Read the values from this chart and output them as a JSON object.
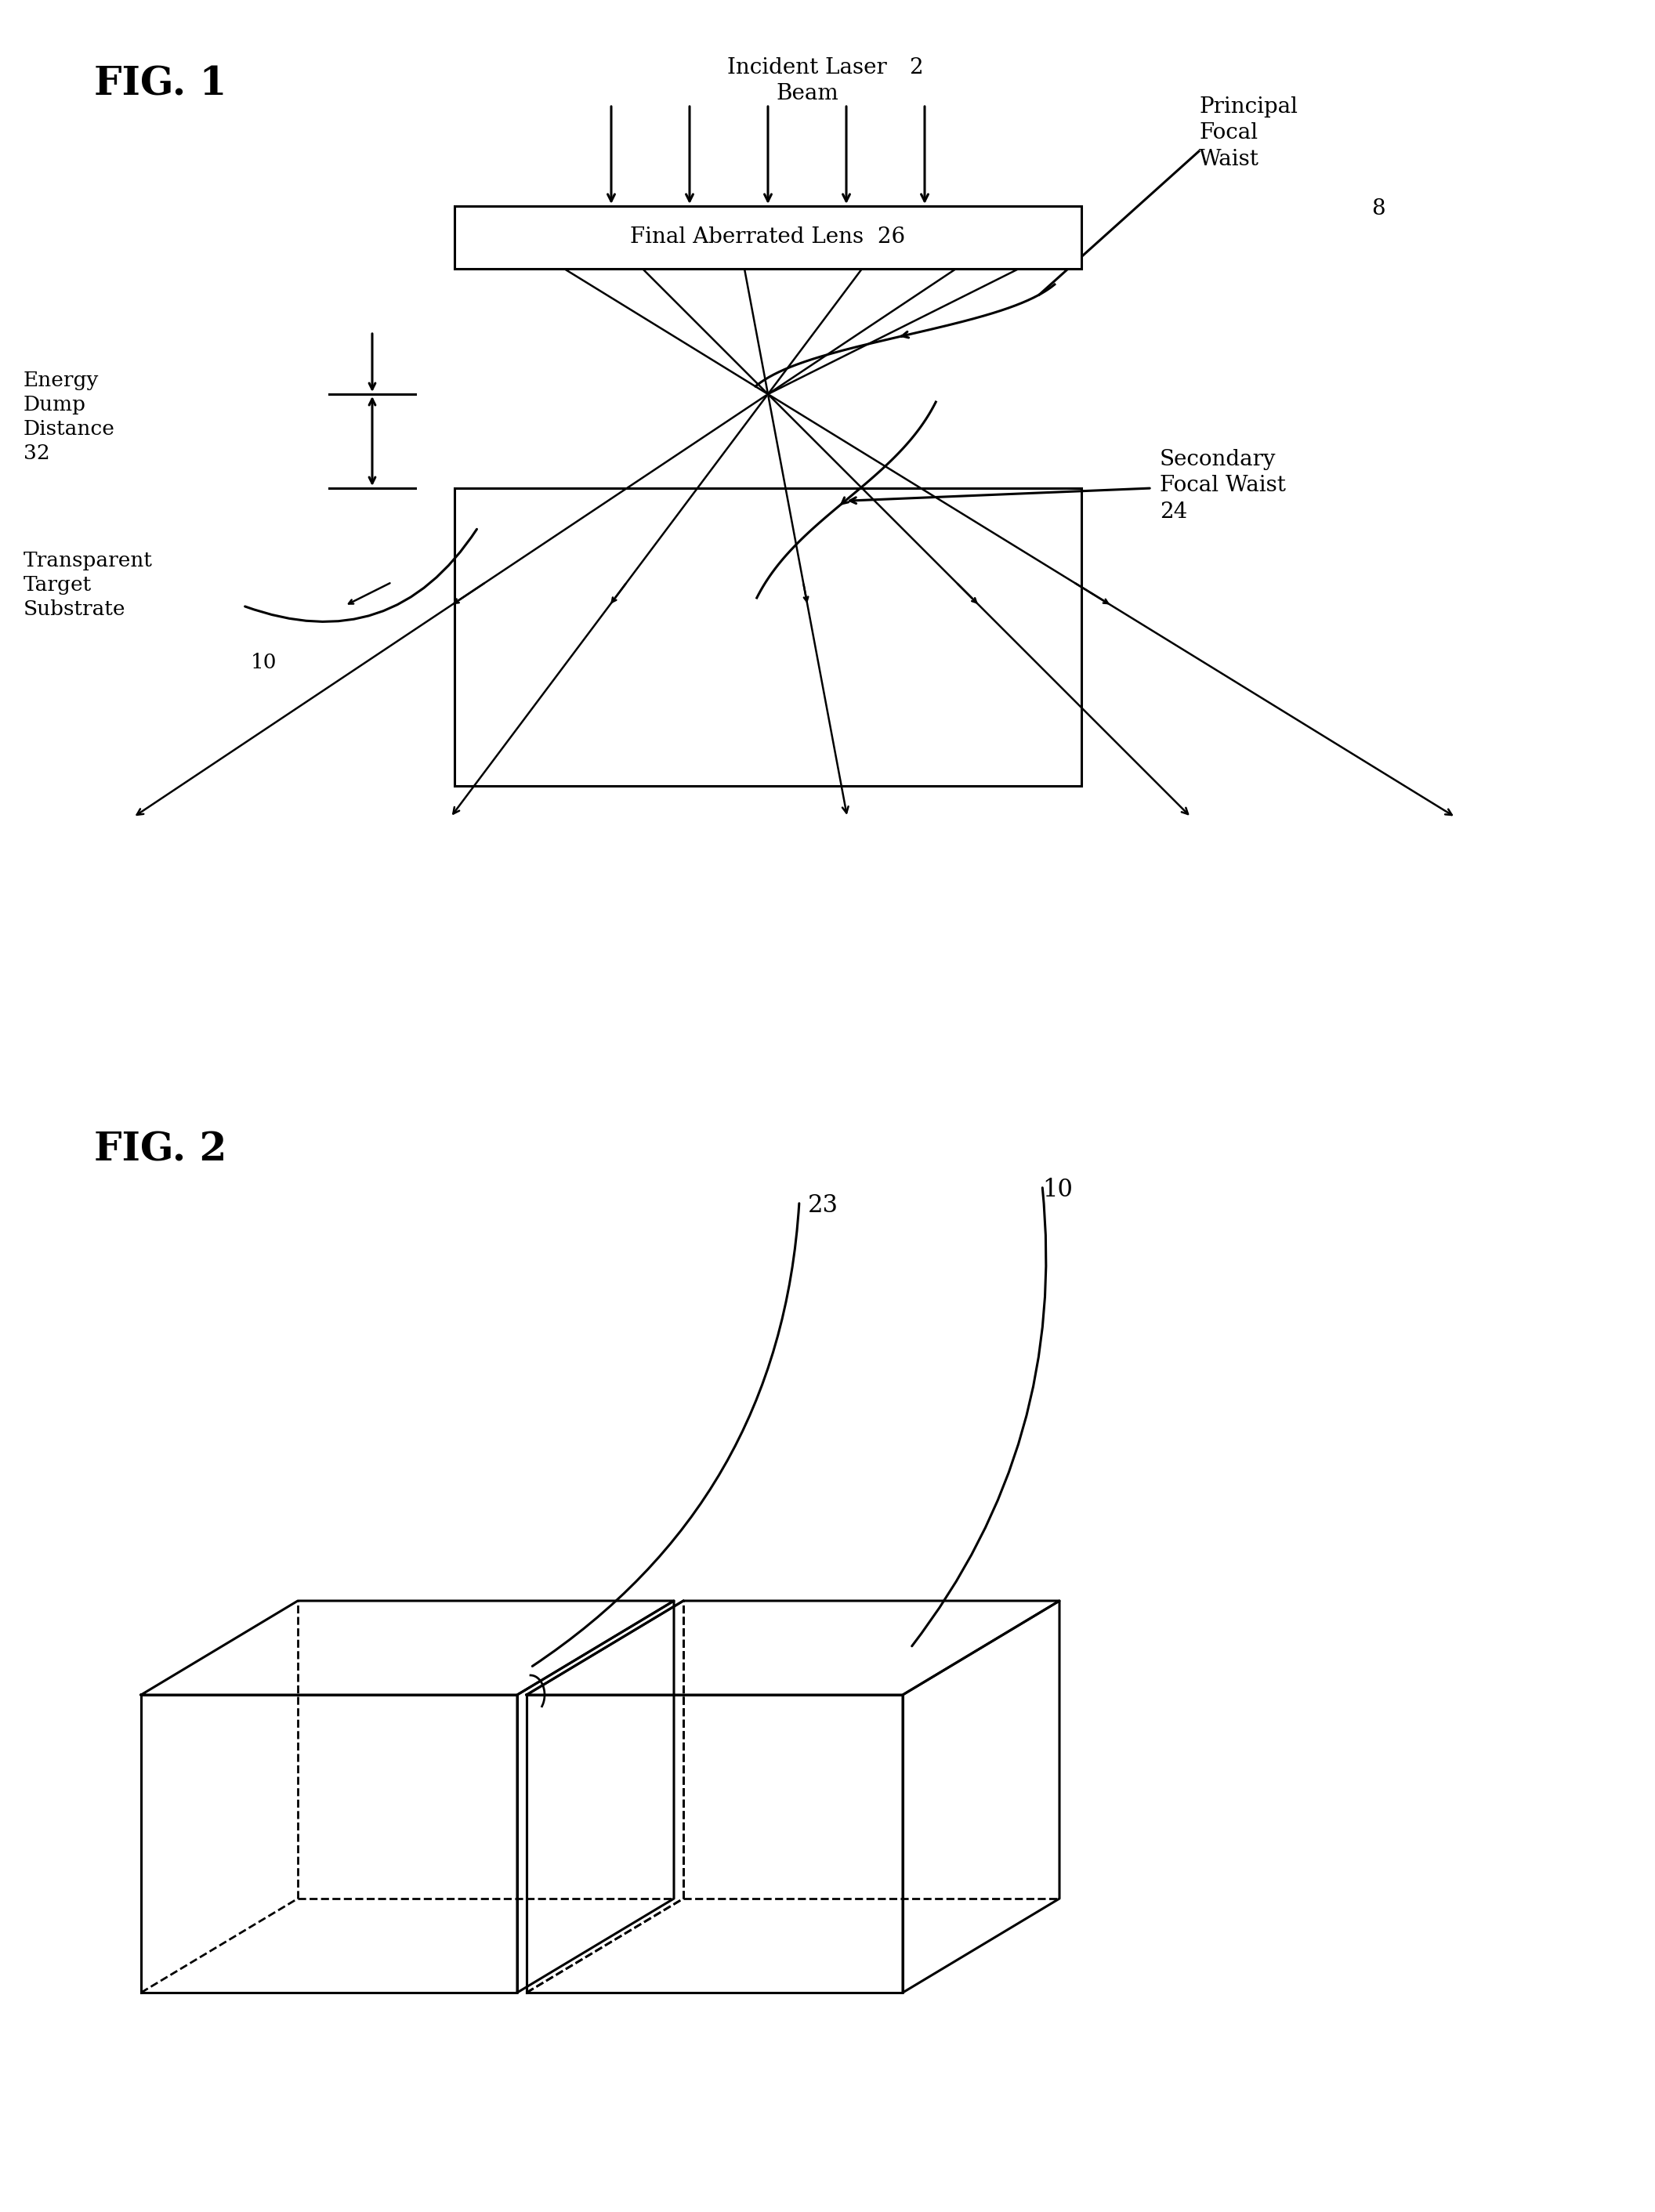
{
  "fig1_label": "FIG. 1",
  "fig2_label": "FIG. 2",
  "lens_label": "Final Aberrated Lens  26",
  "beam_label": "Incident Laser\nBeam",
  "beam_number": "2",
  "principal_focal_waist_label": "Principal\nFocal\nWaist",
  "principal_focal_waist_number": "8",
  "secondary_focal_waist_label": "Secondary\nFocal Waist\n24",
  "energy_dump_label": "Energy\nDump\nDistance\n32",
  "substrate_label": "Transparent\nTarget\nSubstrate",
  "substrate_number": "10",
  "label_23": "23",
  "label_10": "10",
  "bg_color": "#ffffff",
  "line_color": "#000000"
}
